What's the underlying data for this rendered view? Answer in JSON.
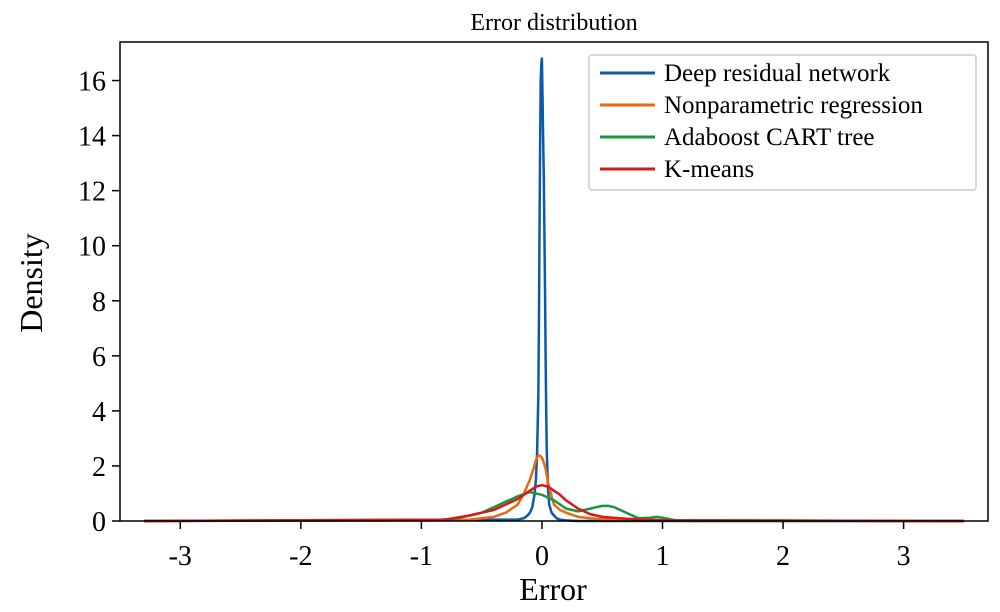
{
  "chart_data": {
    "type": "line",
    "title": "Error distribution",
    "xlabel": "Error",
    "ylabel": "Density",
    "xlim": [
      -3.5,
      3.7
    ],
    "ylim": [
      0,
      17.4
    ],
    "xticks": [
      -3,
      -2,
      -1,
      0,
      1,
      2,
      3
    ],
    "xtick_labels": [
      "-3",
      "-2",
      "-1",
      "0",
      "1",
      "2",
      "3"
    ],
    "yticks": [
      0,
      2,
      4,
      6,
      8,
      10,
      12,
      14,
      16
    ],
    "ytick_labels": [
      "0",
      "2",
      "4",
      "6",
      "8",
      "10",
      "12",
      "14",
      "16"
    ],
    "grid": false,
    "legend_position": "top-right",
    "series": [
      {
        "name": "Deep residual network",
        "color": "#0b5aa8",
        "x": [
          -0.2,
          -0.15,
          -0.12,
          -0.1,
          -0.08,
          -0.06,
          -0.05,
          -0.04,
          -0.03,
          -0.025,
          -0.02,
          -0.015,
          -0.01,
          -0.005,
          0,
          0.005,
          0.01,
          0.015,
          0.02,
          0.025,
          0.03,
          0.035,
          0.04,
          0.05,
          0.06,
          0.08,
          0.1,
          0.12,
          0.15,
          0.2,
          0.3
        ],
        "y": [
          0.05,
          0.1,
          0.2,
          0.3,
          0.5,
          1.0,
          1.5,
          2.5,
          4.5,
          7.0,
          10.5,
          13.5,
          16.0,
          16.6,
          16.8,
          15.5,
          14.0,
          12.5,
          10.5,
          8.5,
          6.0,
          4.0,
          2.5,
          1.2,
          0.6,
          0.3,
          0.2,
          0.1,
          0.05,
          0.02,
          0
        ]
      },
      {
        "name": "Nonparametric regression",
        "color": "#e8690f",
        "x": [
          -0.6,
          -0.4,
          -0.3,
          -0.2,
          -0.15,
          -0.1,
          -0.07,
          -0.05,
          -0.03,
          -0.01,
          0,
          0.01,
          0.03,
          0.05,
          0.08,
          0.1,
          0.15,
          0.2,
          0.3,
          0.4,
          0.6
        ],
        "y": [
          0.05,
          0.15,
          0.3,
          0.6,
          1.0,
          1.5,
          1.9,
          2.2,
          2.4,
          2.35,
          2.3,
          2.2,
          1.9,
          1.4,
          0.9,
          0.6,
          0.4,
          0.3,
          0.15,
          0.1,
          0.03
        ]
      },
      {
        "name": "Adaboost CART tree",
        "color": "#1a9641",
        "x": [
          -0.9,
          -0.7,
          -0.5,
          -0.4,
          -0.3,
          -0.2,
          -0.1,
          0,
          0.1,
          0.2,
          0.3,
          0.4,
          0.5,
          0.55,
          0.6,
          0.7,
          0.8,
          0.9,
          0.95,
          1.0,
          1.05,
          1.1,
          1.2
        ],
        "y": [
          0.02,
          0.1,
          0.3,
          0.5,
          0.7,
          0.9,
          1.05,
          0.95,
          0.75,
          0.45,
          0.35,
          0.45,
          0.55,
          0.55,
          0.5,
          0.3,
          0.1,
          0.12,
          0.15,
          0.12,
          0.08,
          0.03,
          0
        ]
      },
      {
        "name": "K-means",
        "color": "#d7191c",
        "x": [
          -0.8,
          -0.6,
          -0.5,
          -0.4,
          -0.3,
          -0.2,
          -0.1,
          -0.05,
          0,
          0.05,
          0.1,
          0.15,
          0.2,
          0.3,
          0.4,
          0.5,
          0.7,
          1.0,
          1.3
        ],
        "y": [
          0.05,
          0.2,
          0.3,
          0.4,
          0.6,
          0.8,
          1.1,
          1.25,
          1.3,
          1.25,
          1.1,
          0.95,
          0.75,
          0.45,
          0.25,
          0.15,
          0.08,
          0.03,
          0.02
        ]
      }
    ]
  }
}
